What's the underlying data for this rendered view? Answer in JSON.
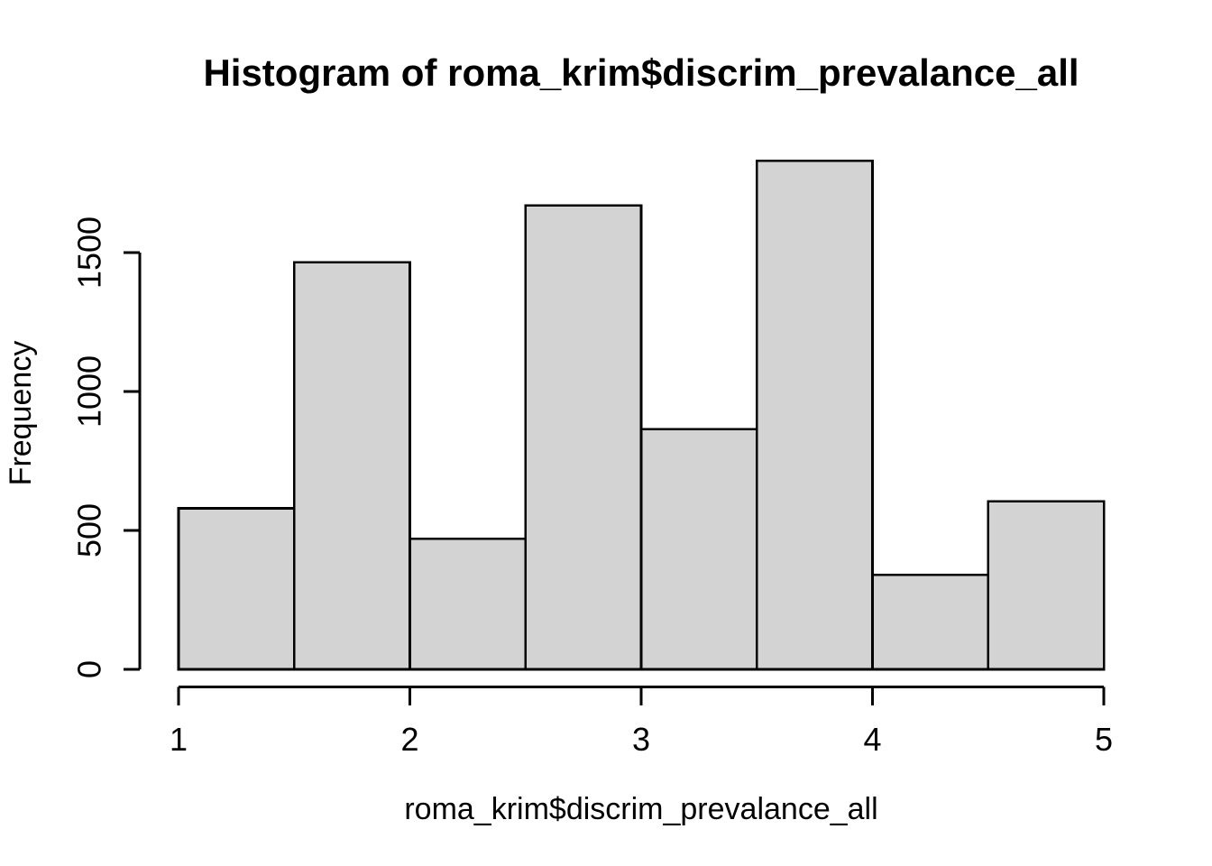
{
  "chart_data": {
    "type": "bar",
    "subtype": "histogram",
    "title": "Histogram of roma_krim$discrim_prevalance_all",
    "xlabel": "roma_krim$discrim_prevalance_all",
    "ylabel": "Frequency",
    "bin_edges": [
      1,
      1.5,
      2,
      2.5,
      3,
      3.5,
      4,
      4.5,
      5
    ],
    "values": [
      580,
      1465,
      470,
      1670,
      865,
      1830,
      340,
      605
    ],
    "x_ticks": [
      1,
      2,
      3,
      4,
      5
    ],
    "y_ticks": [
      0,
      500,
      1000,
      1500
    ],
    "xlim": [
      1,
      5
    ],
    "ylim": [
      0,
      1500
    ],
    "grid": false,
    "legend": "none",
    "colors": {
      "bar_fill": "#d3d3d3",
      "bar_stroke": "#000000",
      "axis": "#000000",
      "text": "#000000",
      "background": "#ffffff"
    }
  }
}
